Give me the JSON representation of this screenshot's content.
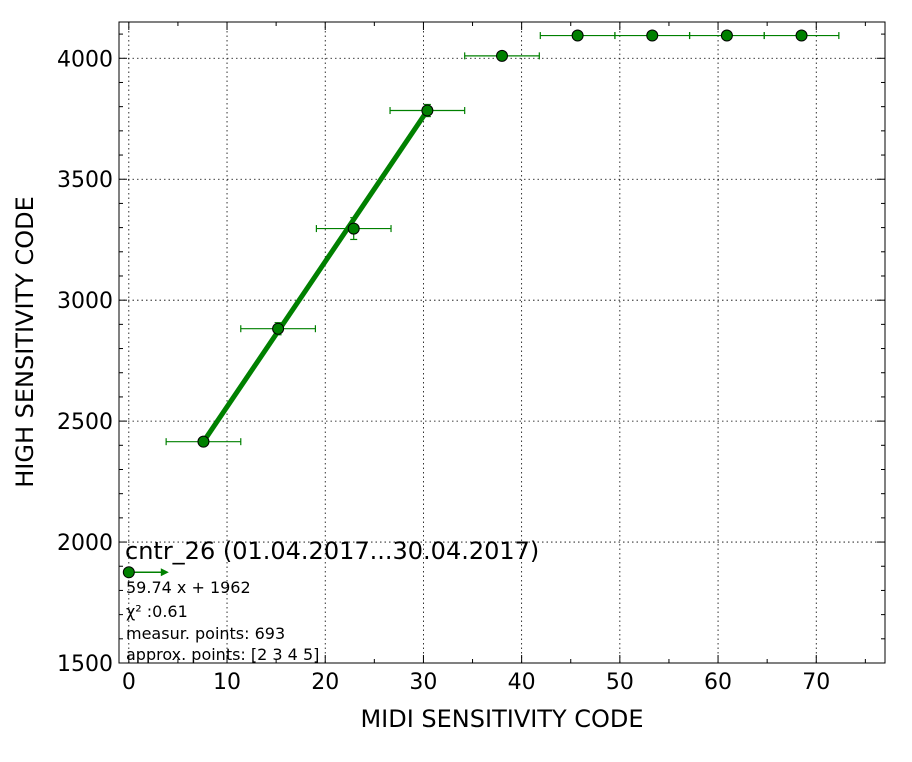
{
  "chart_data": {
    "type": "scatter",
    "xlabel": "MIDI SENSITIVITY CODE",
    "ylabel": "HIGH SENSITIVITY CODE",
    "xlim": [
      -1,
      77
    ],
    "ylim": [
      1500,
      4150
    ],
    "xticks": [
      0,
      10,
      20,
      30,
      40,
      50,
      60,
      70
    ],
    "yticks": [
      1500,
      2000,
      2500,
      3000,
      3500,
      4000
    ],
    "grid": true,
    "color": "#008000",
    "points": [
      {
        "x": 7.6,
        "y": 2415,
        "xerr": 3.8,
        "yerr": 10
      },
      {
        "x": 15.2,
        "y": 2882,
        "xerr": 3.8,
        "yerr": 25
      },
      {
        "x": 22.9,
        "y": 3296,
        "xerr": 3.8,
        "yerr": 45
      },
      {
        "x": 30.4,
        "y": 3784,
        "xerr": 3.8,
        "yerr": 25
      },
      {
        "x": 38.0,
        "y": 4010,
        "xerr": 3.8,
        "yerr": 0
      },
      {
        "x": 45.7,
        "y": 4094,
        "xerr": 3.8,
        "yerr": 0
      },
      {
        "x": 53.3,
        "y": 4094,
        "xerr": 3.8,
        "yerr": 0
      },
      {
        "x": 60.9,
        "y": 4094,
        "xerr": 3.8,
        "yerr": 0
      },
      {
        "x": 68.5,
        "y": 4094,
        "xerr": 3.8,
        "yerr": 0
      }
    ],
    "fit_line": {
      "x": [
        7.6,
        30.4
      ],
      "y": [
        2415,
        3784
      ]
    },
    "legend_marker_point": {
      "x": 0,
      "y": 1875
    },
    "annotation": {
      "title": "cntr_26 (01.04.2017...30.04.2017)",
      "equation": "59.74 x + 1962",
      "chi2": "χ² :0.61",
      "measur_points": "measur. points: 693",
      "approx_points": "approx. points: [2 3 4 5]"
    }
  }
}
